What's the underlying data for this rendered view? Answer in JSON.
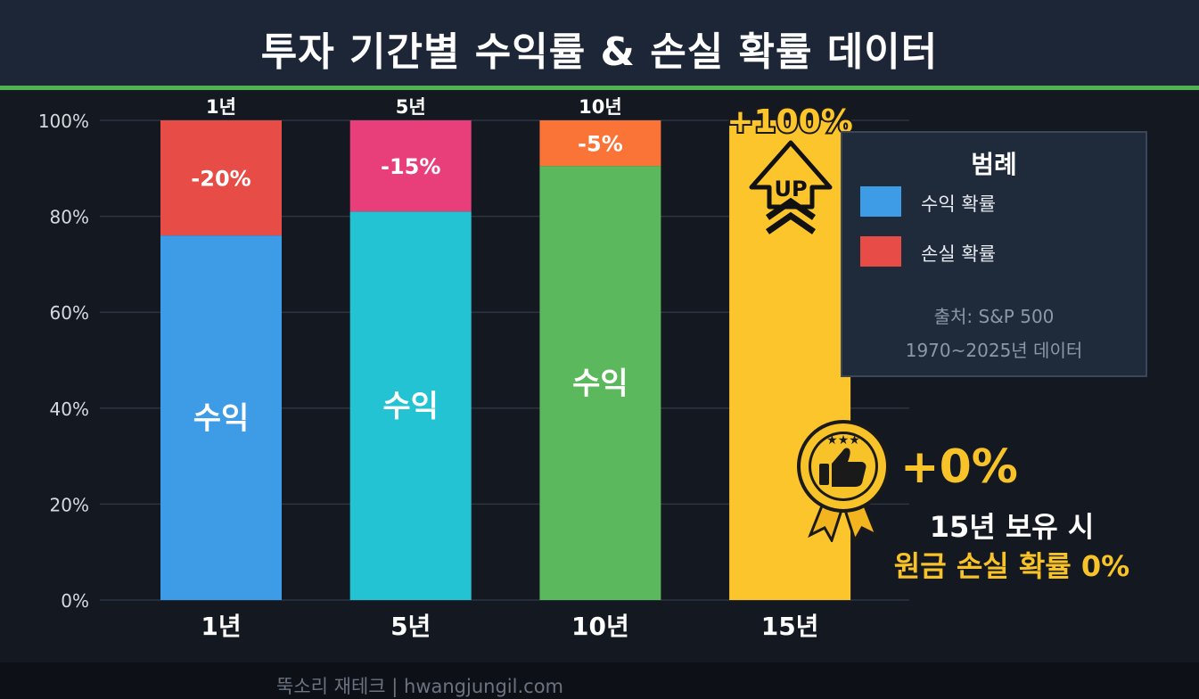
{
  "title": "투자 기간별 수익률 & 손실 확률 데이터",
  "chart_data": {
    "type": "bar",
    "stacked": true,
    "categories": [
      "1년",
      "5년",
      "10년",
      "15년"
    ],
    "top_labels": [
      "1년",
      "5년",
      "10년"
    ],
    "series": [
      {
        "name": "수익 확률",
        "values": [
          76,
          81,
          90.5,
          100
        ],
        "labels": [
          "수익",
          "수익",
          "수익",
          ""
        ],
        "colors": [
          "#3e9be6",
          "#24c3d4",
          "#5cb85c",
          "#fcc52c"
        ]
      },
      {
        "name": "손실 확률",
        "values": [
          24,
          19,
          9.5,
          0
        ],
        "labels": [
          "-20%",
          "-15%",
          "-5%",
          ""
        ],
        "colors": [
          "#e84c47",
          "#e83e7a",
          "#fb7437",
          "#fcc52c"
        ]
      }
    ],
    "yticks": [
      "0%",
      "20%",
      "40%",
      "60%",
      "80%",
      "100%"
    ],
    "ylim": [
      0,
      100
    ],
    "grid": true,
    "peak_label": "+100%",
    "up_icon_label": "UP"
  },
  "legend": {
    "title": "범례",
    "items": [
      {
        "label": "수익 확률",
        "color": "#3e9be6"
      },
      {
        "label": "손실 확률",
        "color": "#e84c47"
      }
    ],
    "source": "출처: S&P 500",
    "period": "1970~2025년 데이터"
  },
  "callout": {
    "value": "+0%",
    "line1": "15년 보유 시",
    "line2": "원금 손실 확률 0%"
  },
  "icons": {
    "arrow": "up-arrow-icon",
    "badge": "thumbs-up-badge-icon"
  },
  "colors": {
    "accent": "#fcc52c",
    "header_rule": "#4fb34f",
    "background": "#141820"
  },
  "footer": "뚝소리 재테크 | hwangjungil.com"
}
